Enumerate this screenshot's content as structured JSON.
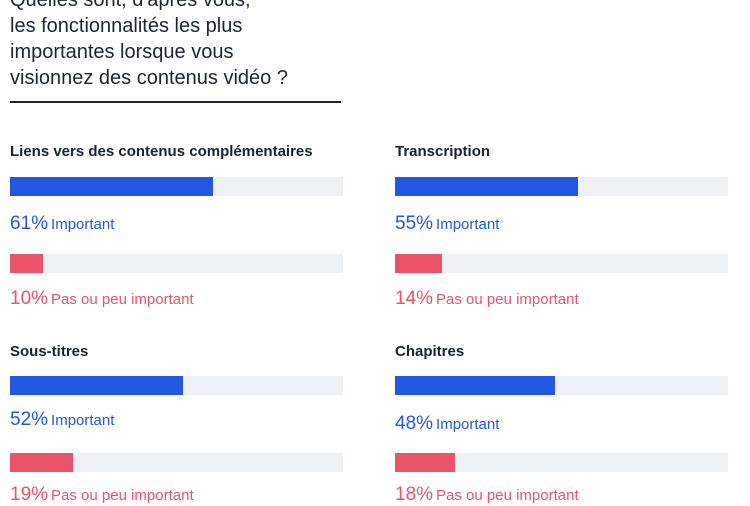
{
  "question": {
    "lines": [
      "Quelles sont, d'après vous,",
      "les fonctionnalités les plus",
      "importantes lorsque vous",
      "visionnez des contenus vidéo ?"
    ]
  },
  "colors": {
    "important": "#2457e0",
    "not_important": "#ea5468",
    "track": "#eef0f4"
  },
  "chart_data": {
    "type": "bar",
    "panels": [
      {
        "title": "Liens vers des contenus complémentaires",
        "important": {
          "pct": "61%",
          "label": "Important",
          "value": 61
        },
        "not_important": {
          "pct": "10%",
          "label": "Pas ou peu important",
          "value": 10
        }
      },
      {
        "title": "Transcription",
        "important": {
          "pct": "55%",
          "label": "Important",
          "value": 55
        },
        "not_important": {
          "pct": "14%",
          "label": "Pas ou peu important",
          "value": 14
        }
      },
      {
        "title": "Sous-titres",
        "important": {
          "pct": "52%",
          "label": "Important",
          "value": 52
        },
        "not_important": {
          "pct": "19%",
          "label": "Pas ou peu important",
          "value": 19
        }
      },
      {
        "title": "Chapitres",
        "important": {
          "pct": "48%",
          "label": "Important",
          "value": 48
        },
        "not_important": {
          "pct": "18%",
          "label": "Pas ou peu important",
          "value": 18
        }
      }
    ],
    "ylim": [
      0,
      100
    ]
  }
}
